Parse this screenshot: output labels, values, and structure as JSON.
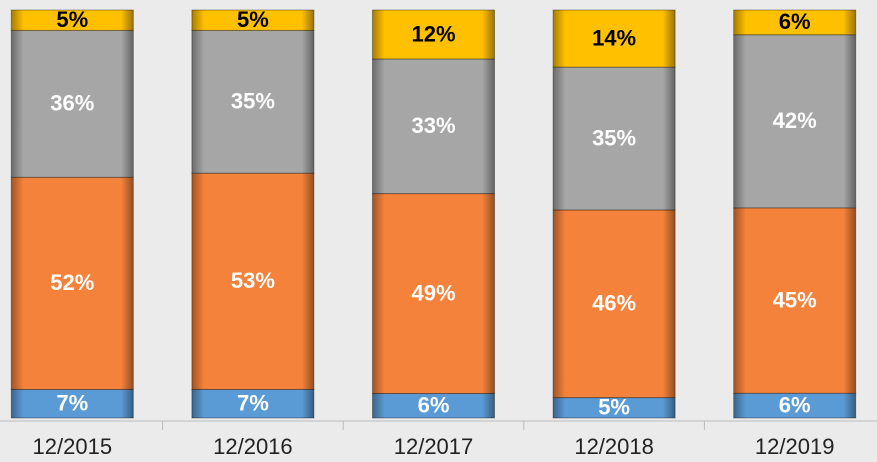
{
  "chart_data": {
    "type": "stacked_bar",
    "categories": [
      "12/2015",
      "12/2016",
      "12/2017",
      "12/2018",
      "12/2019"
    ],
    "series": [
      {
        "color": "#5b9bd5",
        "label_color": "#ffffff",
        "values": [
          7,
          7,
          6,
          5,
          6
        ],
        "value_labels": [
          "7%",
          "7%",
          "6%",
          "5%",
          "6%"
        ]
      },
      {
        "color": "#f5823a",
        "label_color": "#ffffff",
        "values": [
          52,
          53,
          49,
          46,
          45
        ],
        "value_labels": [
          "52%",
          "53%",
          "49%",
          "46%",
          "45%"
        ]
      },
      {
        "color": "#a6a6a6",
        "label_color": "#ffffff",
        "values": [
          36,
          35,
          33,
          35,
          42
        ],
        "value_labels": [
          "36%",
          "35%",
          "33%",
          "35%",
          "42%"
        ]
      },
      {
        "color": "#ffc000",
        "label_color": "#000000",
        "values": [
          5,
          5,
          12,
          14,
          6
        ],
        "value_labels": [
          "5%",
          "5%",
          "12%",
          "14%",
          "6%"
        ]
      }
    ]
  }
}
